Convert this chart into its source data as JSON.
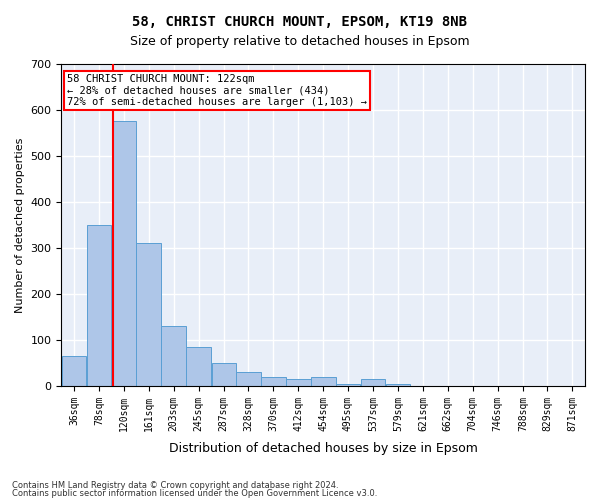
{
  "title1": "58, CHRIST CHURCH MOUNT, EPSOM, KT19 8NB",
  "title2": "Size of property relative to detached houses in Epsom",
  "xlabel": "Distribution of detached houses by size in Epsom",
  "ylabel": "Number of detached properties",
  "bar_color": "#aec6e8",
  "bar_edge_color": "#5a9fd4",
  "background_color": "#e8eef8",
  "grid_color": "#ffffff",
  "property_size": 122,
  "annotation_text": "58 CHRIST CHURCH MOUNT: 122sqm\n← 28% of detached houses are smaller (434)\n72% of semi-detached houses are larger (1,103) →",
  "footnote1": "Contains HM Land Registry data © Crown copyright and database right 2024.",
  "footnote2": "Contains public sector information licensed under the Open Government Licence v3.0.",
  "bin_labels": [
    "36sqm",
    "78sqm",
    "120sqm",
    "161sqm",
    "203sqm",
    "245sqm",
    "287sqm",
    "328sqm",
    "370sqm",
    "412sqm",
    "454sqm",
    "495sqm",
    "537sqm",
    "579sqm",
    "621sqm",
    "662sqm",
    "704sqm",
    "746sqm",
    "788sqm",
    "829sqm",
    "871sqm"
  ],
  "bin_edges": [
    36,
    78,
    120,
    161,
    203,
    245,
    287,
    328,
    370,
    412,
    454,
    495,
    537,
    579,
    621,
    662,
    704,
    746,
    788,
    829,
    871
  ],
  "bar_heights": [
    65,
    350,
    575,
    310,
    130,
    85,
    50,
    30,
    20,
    15,
    20,
    5,
    15,
    5,
    0,
    0,
    0,
    0,
    0,
    0
  ],
  "ylim": [
    0,
    700
  ],
  "yticks": [
    0,
    100,
    200,
    300,
    400,
    500,
    600,
    700
  ]
}
